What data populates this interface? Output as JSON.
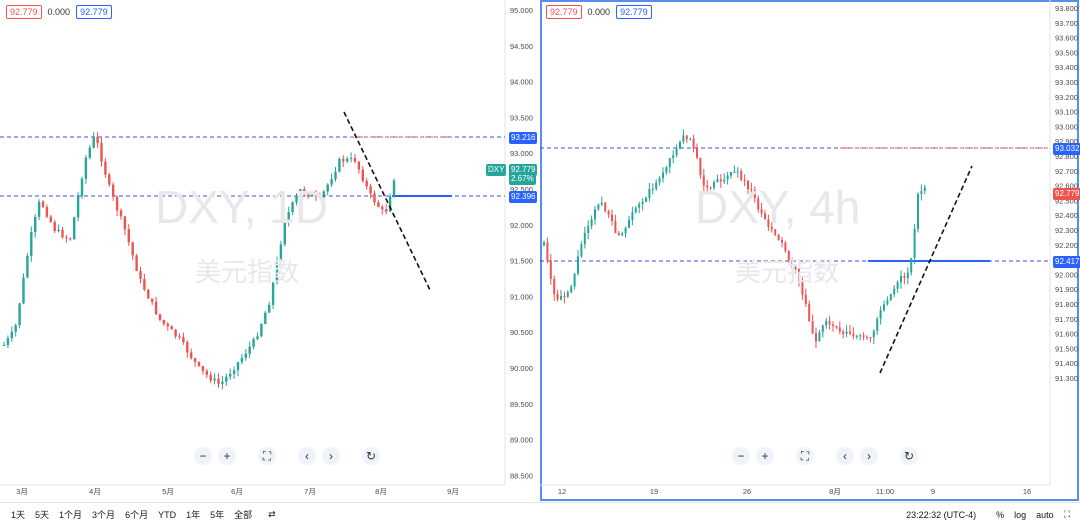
{
  "left": {
    "legend": {
      "val1": "92.779",
      "val2": "0.000",
      "val3": "92.779"
    },
    "watermark": {
      "symbol": "DXY, 1D",
      "name": "美元指数"
    },
    "yaxis": [
      "95.000",
      "94.500",
      "94.000",
      "93.500",
      "93.000",
      "92.500",
      "92.000",
      "91.500",
      "91.000",
      "90.500",
      "90.000",
      "89.500",
      "89.000",
      "88.500"
    ],
    "xaxis": [
      "3月",
      "4月",
      "5月",
      "6月",
      "7月",
      "8月",
      "9月"
    ],
    "tags": {
      "level_top": "93.216",
      "level_bottom": "92.396",
      "symbol": "DXY",
      "price": "92.779",
      "pct": "2.67%"
    }
  },
  "right": {
    "legend": {
      "val1": "92.779",
      "val2": "0.000",
      "val3": "92.779"
    },
    "watermark": {
      "symbol": "DXY, 4h",
      "name": "美元指数"
    },
    "yaxis": [
      "93.800",
      "93.700",
      "93.600",
      "93.500",
      "93.400",
      "93.300",
      "93.200",
      "93.100",
      "93.000",
      "92.900",
      "92.800",
      "92.700",
      "92.600",
      "92.500",
      "92.400",
      "92.300",
      "92.200",
      "92.100",
      "92.000",
      "91.900",
      "91.800",
      "91.700",
      "91.600",
      "91.500",
      "91.400",
      "91.300"
    ],
    "xaxis": [
      "12",
      "19",
      "26",
      "8月",
      "11:00",
      "9",
      "16"
    ],
    "tags": {
      "level_top": "93.032",
      "level_bottom": "92.417",
      "price": "92.779"
    }
  },
  "controls": {
    "zoom_out": "−",
    "zoom_in": "+",
    "fullscreen": "⛶",
    "prev": "‹",
    "next": "›",
    "reset": "↻"
  },
  "bottombar": {
    "timeframes": [
      "1天",
      "5天",
      "1个月",
      "3个月",
      "6个月",
      "YTD",
      "1年",
      "5年",
      "全部"
    ],
    "time": "23:22:32 (UTC-4)",
    "right_items": [
      "%",
      "log",
      "auto"
    ],
    "settings_icon": "⚙"
  },
  "colors": {
    "up": "#26a69a",
    "down": "#ef5350",
    "accent": "#2962ff",
    "level_line": "#3f51d8",
    "red_line": "#ef5350"
  }
}
